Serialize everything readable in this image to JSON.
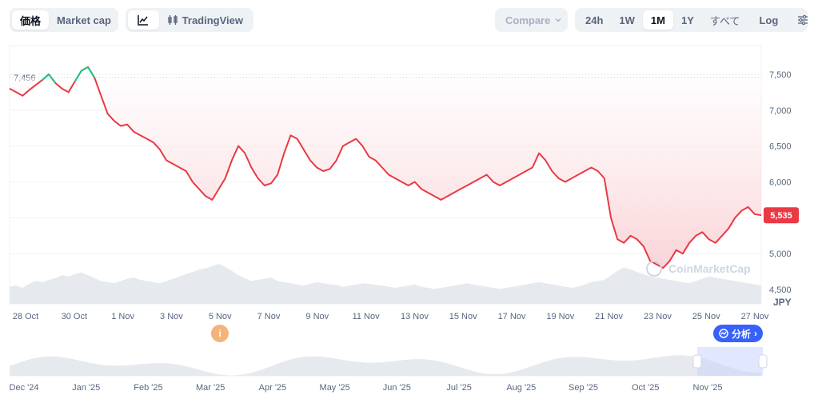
{
  "toolbar": {
    "view_tabs": [
      "価格",
      "Market cap"
    ],
    "active_view": "価格",
    "chart_icon": "line-chart-icon",
    "tradingview_label": "TradingView",
    "compare_label": "Compare",
    "ranges": [
      "24h",
      "1W",
      "1M",
      "1Y",
      "すべて"
    ],
    "active_range": "1M",
    "log_label": "Log",
    "settings_icon": "sliders-icon"
  },
  "chart_data": {
    "type": "line",
    "currency": "JPY",
    "ylim": [
      4300,
      7900
    ],
    "y_ticks": [
      "7,500",
      "7,000",
      "6,500",
      "6,000",
      "5,500",
      "5,000",
      "4,500"
    ],
    "y_tick_values": [
      7500,
      7000,
      6500,
      6000,
      5500,
      5000,
      4500
    ],
    "x_ticks": [
      "28 Oct",
      "30 Oct",
      "1 Nov",
      "3 Nov",
      "5 Nov",
      "7 Nov",
      "9 Nov",
      "11 Nov",
      "13 Nov",
      "15 Nov",
      "17 Nov",
      "19 Nov",
      "21 Nov",
      "23 Nov",
      "25 Nov",
      "27 Nov"
    ],
    "reference_value": 7456,
    "reference_label": "7,456",
    "current_value": 5535,
    "current_label": "5,535",
    "series": [
      {
        "values": [
          7300,
          7250,
          7200,
          7280,
          7350,
          7420,
          7500,
          7380,
          7300,
          7250,
          7400,
          7550,
          7600,
          7450,
          7200,
          6950,
          6850,
          6780,
          6800,
          6700,
          6650,
          6600,
          6550,
          6450,
          6300,
          6250,
          6200,
          6150,
          6000,
          5900,
          5800,
          5750,
          5900,
          6050,
          6300,
          6500,
          6400,
          6200,
          6050,
          5950,
          5980,
          6100,
          6400,
          6650,
          6600,
          6450,
          6300,
          6200,
          6150,
          6180,
          6300,
          6500,
          6550,
          6600,
          6500,
          6350,
          6300,
          6200,
          6100,
          6050,
          6000,
          5950,
          6000,
          5900,
          5850,
          5800,
          5750,
          5800,
          5850,
          5900,
          5950,
          6000,
          6050,
          6100,
          6000,
          5950,
          6000,
          6050,
          6100,
          6150,
          6200,
          6400,
          6300,
          6150,
          6050,
          6000,
          6050,
          6100,
          6150,
          6200,
          6150,
          6050,
          5500,
          5200,
          5150,
          5250,
          5200,
          5100,
          4900,
          4850,
          4800,
          4900,
          5050,
          5000,
          5150,
          5250,
          5300,
          5200,
          5150,
          5250,
          5350,
          5500,
          5600,
          5650,
          5550,
          5535
        ]
      }
    ],
    "positive_prefix_count": 14,
    "volume": [
      30,
      32,
      28,
      35,
      40,
      38,
      42,
      45,
      50,
      48,
      52,
      55,
      50,
      45,
      40,
      38,
      36,
      40,
      44,
      46,
      42,
      40,
      38,
      36,
      40,
      44,
      48,
      52,
      56,
      60,
      62,
      66,
      70,
      65,
      58,
      50,
      45,
      40,
      42,
      44,
      46,
      40,
      38,
      36,
      34,
      32,
      35,
      38,
      36,
      34,
      33,
      30,
      32,
      34,
      36,
      35,
      33,
      32,
      30,
      28,
      30,
      32,
      34,
      30,
      28,
      26,
      28,
      30,
      32,
      34,
      36,
      34,
      32,
      30,
      28,
      26,
      28,
      30,
      32,
      34,
      36,
      38,
      36,
      34,
      32,
      30,
      28,
      30,
      34,
      38,
      40,
      42,
      50,
      58,
      64,
      60,
      56,
      52,
      48,
      46,
      44,
      42,
      40,
      38,
      36,
      40,
      44,
      48,
      46,
      44,
      42,
      40,
      38,
      36,
      34,
      32
    ],
    "navigator_x_ticks": [
      "Dec '24",
      "Jan '25",
      "Feb '25",
      "Mar '25",
      "Apr '25",
      "May '25",
      "Jun '25",
      "Jul '25",
      "Aug '25",
      "Sep '25",
      "Oct '25",
      "Nov '25"
    ],
    "colors": {
      "down": "#ea3943",
      "up": "#16c784",
      "fill": "#fde2e4",
      "navigator": "#e6e9ee",
      "selection": "#c9d5fb"
    }
  },
  "watermark": "CoinMarketCap",
  "analysis_label": "分析",
  "event_marker_label": "i"
}
